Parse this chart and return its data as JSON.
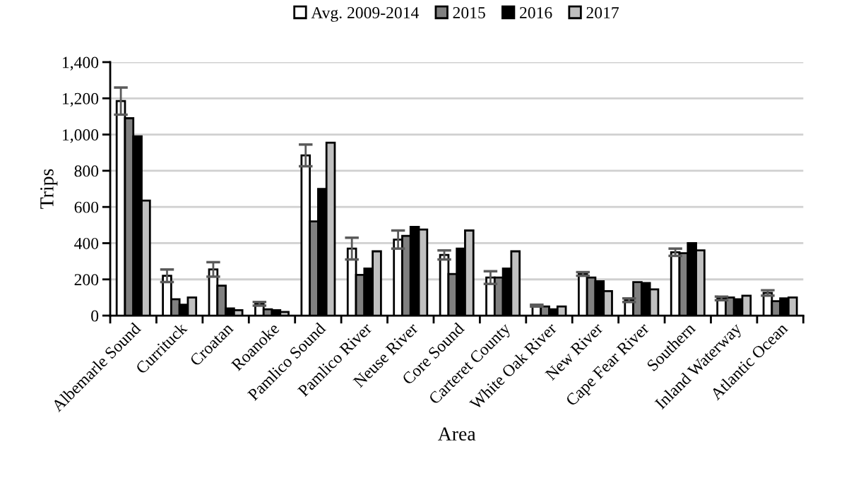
{
  "chart_data": {
    "type": "bar",
    "xlabel": "Area",
    "ylabel": "Trips",
    "categories": [
      "Albemarle Sound",
      "Currituck",
      "Croatan",
      "Roanoke",
      "Pamlico Sound",
      "Pamlico River",
      "Neuse River",
      "Core Sound",
      "Carteret County",
      "White Oak River",
      "New River",
      "Cape Fear River",
      "Southern",
      "Inland Waterway",
      "Atlantic Ocean"
    ],
    "series": [
      {
        "name": "Avg. 2009-2014",
        "color": "#ffffff",
        "values": [
          1185,
          220,
          255,
          65,
          885,
          370,
          420,
          335,
          210,
          55,
          230,
          85,
          350,
          95,
          125
        ],
        "errors": [
          75,
          35,
          40,
          10,
          60,
          60,
          50,
          25,
          35,
          5,
          10,
          10,
          20,
          10,
          15
        ]
      },
      {
        "name": "2015",
        "color": "#808080",
        "values": [
          1090,
          90,
          165,
          35,
          520,
          225,
          440,
          230,
          210,
          50,
          210,
          185,
          345,
          100,
          80
        ]
      },
      {
        "name": "2016",
        "color": "#000000",
        "values": [
          990,
          60,
          40,
          30,
          700,
          260,
          490,
          370,
          260,
          35,
          190,
          180,
          400,
          90,
          95
        ]
      },
      {
        "name": "2017",
        "color": "#c0c0c0",
        "values": [
          635,
          100,
          30,
          20,
          955,
          355,
          475,
          470,
          355,
          50,
          135,
          145,
          360,
          110,
          100
        ]
      }
    ],
    "ylim": [
      0,
      1400
    ],
    "yticks": [
      {
        "value": 0,
        "label": "0"
      },
      {
        "value": 200,
        "label": "200"
      },
      {
        "value": 400,
        "label": "400"
      },
      {
        "value": 600,
        "label": "600"
      },
      {
        "value": 800,
        "label": "800"
      },
      {
        "value": 1000,
        "label": "1,000"
      },
      {
        "value": 1200,
        "label": "1,200"
      },
      {
        "value": 1400,
        "label": "1,400"
      }
    ],
    "grid": "y",
    "legend": "top"
  }
}
